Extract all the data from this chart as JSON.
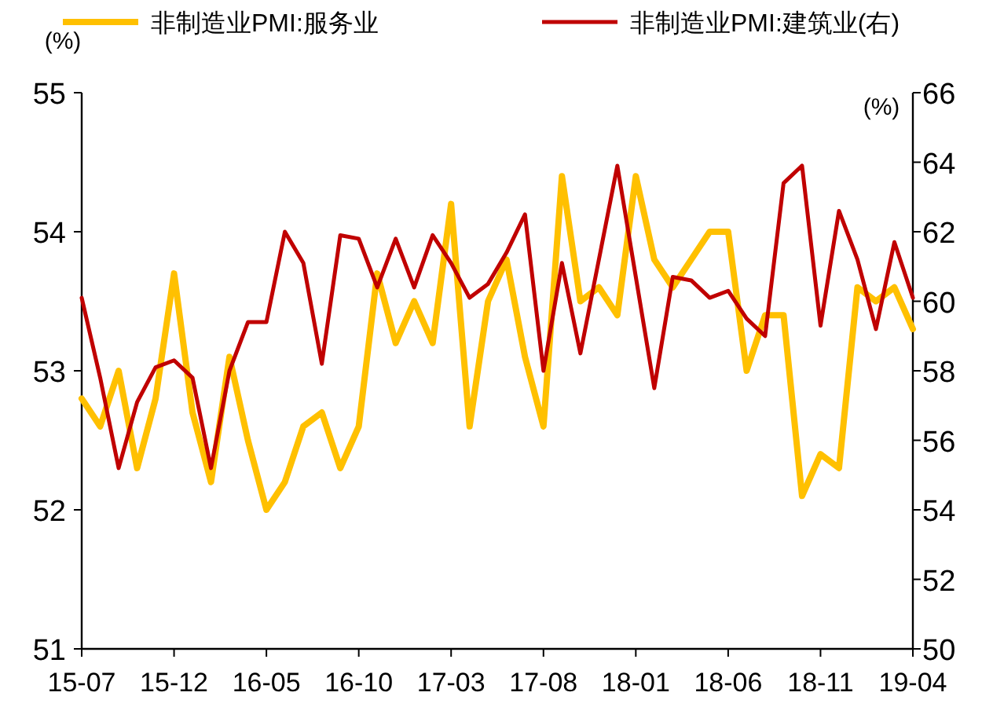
{
  "chart_data": {
    "type": "line",
    "ylabel": "(%)",
    "y2label": "(%)",
    "categories": [
      "15-07",
      null,
      null,
      null,
      null,
      "15-12",
      null,
      null,
      null,
      null,
      "16-05",
      null,
      null,
      null,
      null,
      "16-10",
      null,
      null,
      null,
      null,
      "17-03",
      null,
      null,
      null,
      null,
      "17-08",
      null,
      null,
      null,
      null,
      "18-01",
      null,
      null,
      null,
      null,
      "18-06",
      null,
      null,
      null,
      null,
      "18-11",
      null,
      null,
      null,
      null,
      "19-04"
    ],
    "series": [
      {
        "name": "非制造业PMI:服务业",
        "color": "#ffc000",
        "values": [
          52.8,
          52.6,
          53.0,
          52.3,
          52.8,
          53.7,
          52.7,
          52.2,
          53.1,
          52.5,
          52.0,
          52.2,
          52.6,
          52.7,
          52.3,
          52.6,
          53.7,
          53.2,
          53.5,
          53.2,
          54.2,
          52.6,
          53.5,
          53.8,
          53.1,
          52.6,
          54.4,
          53.5,
          53.6,
          53.4,
          54.4,
          53.8,
          53.6,
          53.8,
          54.0,
          54.0,
          53.0,
          53.4,
          53.4,
          52.1,
          52.4,
          52.3,
          53.6,
          53.5,
          53.6,
          53.3
        ]
      },
      {
        "name": "非制造业PMI:建筑业(右)",
        "color": "#c00000",
        "axis": "y2",
        "values": [
          60.1,
          57.8,
          55.2,
          57.1,
          58.1,
          58.3,
          57.8,
          55.2,
          58.0,
          59.4,
          59.4,
          62.0,
          61.1,
          58.2,
          61.9,
          61.8,
          60.4,
          61.8,
          60.4,
          61.9,
          61.1,
          60.1,
          60.5,
          61.4,
          62.5,
          58.0,
          61.1,
          58.5,
          61.2,
          63.9,
          60.7,
          57.5,
          60.7,
          60.6,
          60.1,
          60.3,
          59.5,
          59.0,
          63.4,
          63.9,
          59.3,
          62.6,
          61.2,
          59.2,
          61.7,
          60.1
        ]
      }
    ],
    "ylim": [
      51,
      55
    ],
    "yticks": [
      51,
      52,
      53,
      54,
      55
    ],
    "y2lim": [
      50,
      66
    ],
    "y2ticks": [
      50,
      52,
      54,
      56,
      58,
      60,
      62,
      64,
      66
    ],
    "legend": "top",
    "marker": "none",
    "line_style": "solid"
  }
}
